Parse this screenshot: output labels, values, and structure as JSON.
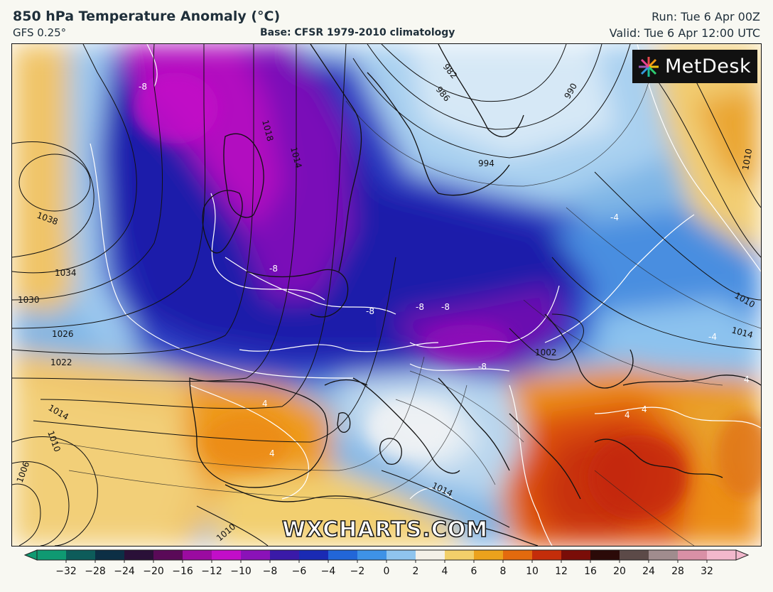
{
  "header": {
    "title": "850 hPa Temperature Anomaly (°C)",
    "model": "GFS 0.25°",
    "base": "Base: CFSR 1979-2010 climatology",
    "run": "Run: Tue 6 Apr 00Z",
    "valid": "Valid: Tue 6 Apr 12:00 UTC"
  },
  "logo": {
    "text": "MetDesk",
    "icon": "metdesk-star-icon"
  },
  "watermark": "WXCHARTS.COM",
  "isobar_labels": [
    "982",
    "986",
    "990",
    "994",
    "1010",
    "1010",
    "1014",
    "1018",
    "1014",
    "1038",
    "1034",
    "1030",
    "1026",
    "1022",
    "1014",
    "1010",
    "1006",
    "1002",
    "1014",
    "1010"
  ],
  "anomaly_labels": [
    "-8",
    "-8",
    "-8",
    "-8",
    "-8",
    "-8",
    "4",
    "4",
    "4",
    "4",
    "-4",
    "-4",
    "4"
  ],
  "colorbar": {
    "ticks": [
      "−32",
      "−28",
      "−24",
      "−20",
      "−16",
      "−12",
      "−10",
      "−8",
      "−6",
      "−4",
      "−2",
      "0",
      "2",
      "4",
      "6",
      "8",
      "10",
      "12",
      "16",
      "20",
      "24",
      "28",
      "32"
    ],
    "colors": [
      "#0f9a72",
      "#0d5c5a",
      "#0c2f45",
      "#2a1038",
      "#5a0a58",
      "#9b0ba0",
      "#c20ec8",
      "#8a12b8",
      "#3a1aa8",
      "#1a2ab4",
      "#2266d8",
      "#3e92e6",
      "#8fc4ee",
      "#f4f0e8",
      "#f2cf6a",
      "#eba21c",
      "#e36a0e",
      "#c42d0a",
      "#7a0d08",
      "#2b0a08",
      "#5c4a48",
      "#a08c8e",
      "#d990a6",
      "#f2b8cc"
    ]
  }
}
